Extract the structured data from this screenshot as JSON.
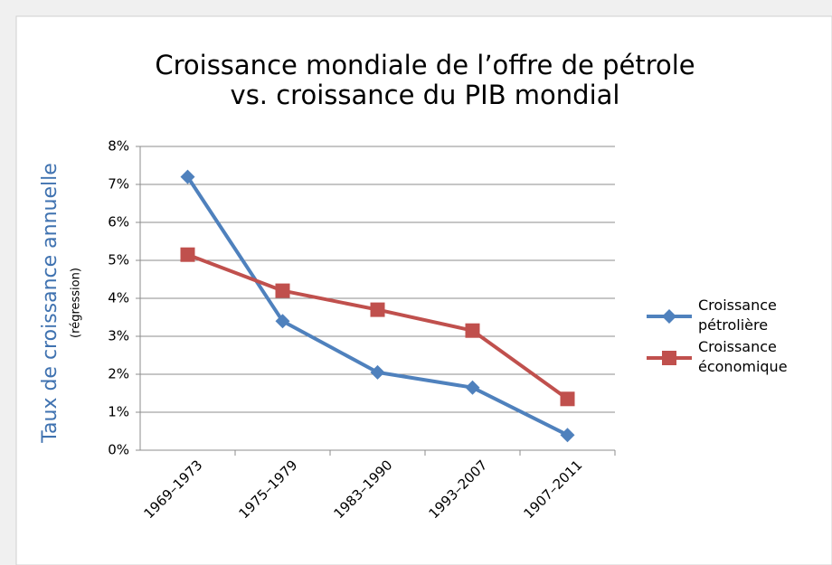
{
  "chart_data": {
    "type": "line",
    "title": [
      "Croissance mondiale de l’offre de pétrole",
      "vs. croissance du PIB mondial"
    ],
    "y_label": "Taux de croissance annuelle",
    "y_sublabel": "(régression)",
    "categories": [
      "1969–1973",
      "1975–1979",
      "1983–1990",
      "1993–2007",
      "1907–2011"
    ],
    "series": [
      {
        "name": "Croissance pétrolière",
        "color": "#4f81bd",
        "marker": "diamond",
        "values": [
          7.2,
          3.4,
          2.05,
          1.65,
          0.4
        ]
      },
      {
        "name": "Croissance économique",
        "color": "#c0504d",
        "marker": "square",
        "values": [
          5.15,
          4.2,
          3.7,
          3.15,
          1.35
        ]
      }
    ],
    "ylim": [
      0,
      8
    ],
    "yticks": [
      {
        "value": 0,
        "label": "0%"
      },
      {
        "value": 1,
        "label": "1%"
      },
      {
        "value": 2,
        "label": "2%"
      },
      {
        "value": 3,
        "label": "3%"
      },
      {
        "value": 4,
        "label": "4%"
      },
      {
        "value": 5,
        "label": "5%"
      },
      {
        "value": 6,
        "label": "6%"
      },
      {
        "value": 7,
        "label": "7%"
      },
      {
        "value": 8,
        "label": "8%"
      }
    ],
    "grid": true,
    "legend": "right"
  }
}
